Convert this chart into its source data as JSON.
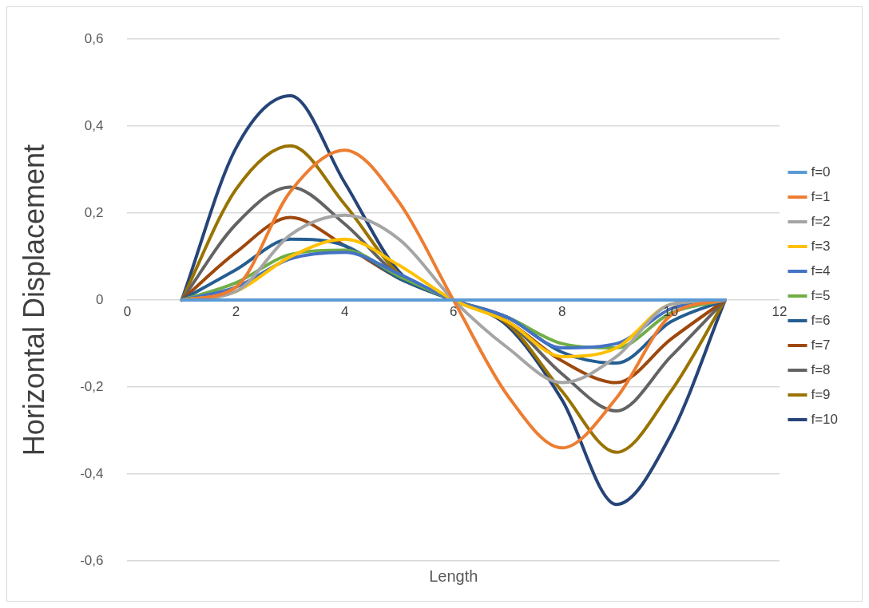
{
  "chart_data": {
    "type": "line",
    "xlabel": "Length",
    "ylabel": "Horizontal Displacement",
    "x": [
      1,
      2,
      3,
      4,
      5,
      6,
      7,
      8,
      9,
      10,
      11
    ],
    "xlim": [
      0,
      12
    ],
    "xticks": [
      0,
      2,
      4,
      6,
      8,
      10,
      12
    ],
    "ylim": [
      -0.6,
      0.6
    ],
    "yticks": [
      {
        "value": -0.6,
        "label": "-0,6"
      },
      {
        "value": -0.4,
        "label": "-0,4"
      },
      {
        "value": -0.2,
        "label": "-0,2"
      },
      {
        "value": 0,
        "label": "0"
      },
      {
        "value": 0.2,
        "label": "0,2"
      },
      {
        "value": 0.4,
        "label": "0,4"
      },
      {
        "value": 0.6,
        "label": "0,6"
      }
    ],
    "grid": "y",
    "legend": "right",
    "marker": "none",
    "line_style": "solid",
    "series": [
      {
        "name": "f=0",
        "color": "#5b9bd5",
        "values": [
          0,
          0,
          0,
          0,
          0,
          0,
          0,
          0,
          0,
          0,
          0
        ]
      },
      {
        "name": "f=1",
        "color": "#ed7d31",
        "values": [
          0,
          0.03,
          0.25,
          0.345,
          0.225,
          0,
          -0.22,
          -0.34,
          -0.225,
          -0.035,
          0
        ]
      },
      {
        "name": "f=2",
        "color": "#a5a5a5",
        "values": [
          0,
          0.02,
          0.15,
          0.195,
          0.14,
          0,
          -0.11,
          -0.19,
          -0.13,
          -0.01,
          0
        ]
      },
      {
        "name": "f=3",
        "color": "#ffc000",
        "values": [
          0,
          0.02,
          0.1,
          0.14,
          0.08,
          0,
          -0.05,
          -0.13,
          -0.11,
          -0.01,
          0
        ]
      },
      {
        "name": "f=4",
        "color": "#4472c4",
        "values": [
          0,
          0.03,
          0.095,
          0.11,
          0.06,
          0,
          -0.04,
          -0.11,
          -0.1,
          -0.02,
          0
        ]
      },
      {
        "name": "f=5",
        "color": "#70ad47",
        "values": [
          0,
          0.04,
          0.105,
          0.115,
          0.055,
          0,
          -0.04,
          -0.1,
          -0.11,
          -0.03,
          0
        ]
      },
      {
        "name": "f=6",
        "color": "#255e91",
        "values": [
          0,
          0.07,
          0.14,
          0.125,
          0.05,
          0,
          -0.04,
          -0.12,
          -0.145,
          -0.05,
          0
        ]
      },
      {
        "name": "f=7",
        "color": "#9e480e",
        "values": [
          0,
          0.11,
          0.19,
          0.125,
          0.05,
          0,
          -0.05,
          -0.14,
          -0.19,
          -0.09,
          0
        ]
      },
      {
        "name": "f=8",
        "color": "#636363",
        "values": [
          0,
          0.175,
          0.26,
          0.175,
          0.055,
          0,
          -0.05,
          -0.17,
          -0.255,
          -0.13,
          0
        ]
      },
      {
        "name": "f=9",
        "color": "#997300",
        "values": [
          0,
          0.255,
          0.355,
          0.22,
          0.06,
          0,
          -0.055,
          -0.21,
          -0.35,
          -0.21,
          0
        ]
      },
      {
        "name": "f=10",
        "color": "#264478",
        "values": [
          0,
          0.35,
          0.47,
          0.27,
          0.065,
          0,
          -0.06,
          -0.23,
          -0.47,
          -0.31,
          0
        ]
      }
    ]
  }
}
